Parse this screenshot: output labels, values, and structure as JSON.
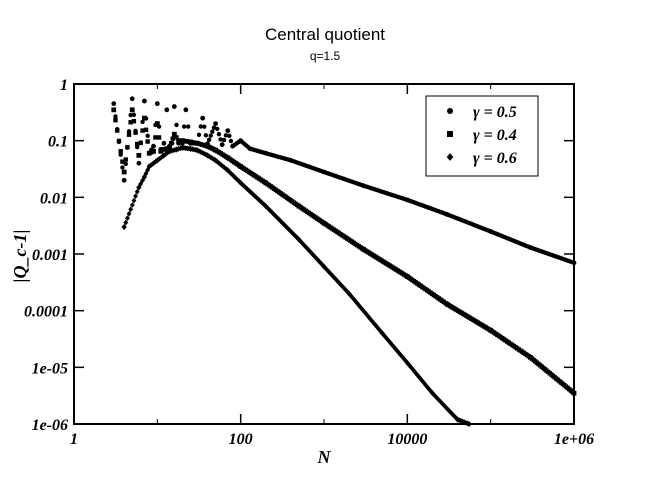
{
  "chart_data": {
    "type": "scatter",
    "title": "Central quotient",
    "subtitle": "q=1.5",
    "xlabel": "N",
    "ylabel": "|Q_c-1|",
    "xscale": "log",
    "yscale": "log",
    "xlim": [
      1,
      1000000
    ],
    "ylim": [
      1e-06,
      1
    ],
    "xticks": [
      {
        "value": 1,
        "label": "1"
      },
      {
        "value": 100,
        "label": "100"
      },
      {
        "value": 10000,
        "label": "10000"
      },
      {
        "value": 1000000,
        "label": "1e+06"
      }
    ],
    "yticks": [
      {
        "value": 1,
        "label": "1"
      },
      {
        "value": 0.1,
        "label": "0.1"
      },
      {
        "value": 0.01,
        "label": "0.01"
      },
      {
        "value": 0.001,
        "label": "0.001"
      },
      {
        "value": 0.0001,
        "label": "0.0001"
      },
      {
        "value": 1e-05,
        "label": "1e-05"
      },
      {
        "value": 1e-06,
        "label": "1e-06"
      }
    ],
    "legend_position": "top-right",
    "grid": false,
    "series": [
      {
        "name": "γ = 0.5",
        "marker": "circle",
        "points": [
          [
            3,
            0.45
          ],
          [
            4,
            0.02
          ],
          [
            5,
            0.55
          ],
          [
            6,
            0.04
          ],
          [
            7,
            0.5
          ],
          [
            8,
            0.06
          ],
          [
            9,
            0.08
          ],
          [
            10,
            0.45
          ],
          [
            11,
            0.07
          ],
          [
            12,
            0.09
          ],
          [
            13,
            0.35
          ],
          [
            14,
            0.08
          ],
          [
            15,
            0.09
          ],
          [
            16,
            0.4
          ],
          [
            18,
            0.09
          ],
          [
            20,
            0.09
          ],
          [
            22,
            0.35
          ],
          [
            25,
            0.09
          ],
          [
            30,
            0.09
          ],
          [
            35,
            0.25
          ],
          [
            40,
            0.088
          ],
          [
            50,
            0.2
          ],
          [
            60,
            0.085
          ],
          [
            70,
            0.15
          ],
          [
            80,
            0.08
          ],
          [
            100,
            0.1
          ],
          [
            130,
            0.072
          ],
          [
            200,
            0.06
          ],
          [
            400,
            0.045
          ],
          [
            1000,
            0.028
          ],
          [
            3000,
            0.016
          ],
          [
            10000,
            0.009
          ],
          [
            30000,
            0.005
          ],
          [
            100000,
            0.0025
          ],
          [
            300000,
            0.0013
          ],
          [
            1000000,
            0.0007
          ]
        ]
      },
      {
        "name": "γ = 0.4",
        "marker": "square",
        "points": [
          [
            3,
            0.35
          ],
          [
            4,
            0.028
          ],
          [
            5,
            0.35
          ],
          [
            6,
            0.055
          ],
          [
            7,
            0.25
          ],
          [
            8,
            0.06
          ],
          [
            9,
            0.065
          ],
          [
            10,
            0.2
          ],
          [
            11,
            0.065
          ],
          [
            12,
            0.07
          ],
          [
            14,
            0.075
          ],
          [
            16,
            0.13
          ],
          [
            18,
            0.1
          ],
          [
            20,
            0.1
          ],
          [
            25,
            0.095
          ],
          [
            30,
            0.09
          ],
          [
            40,
            0.08
          ],
          [
            50,
            0.068
          ],
          [
            70,
            0.05
          ],
          [
            100,
            0.035
          ],
          [
            200,
            0.018
          ],
          [
            500,
            0.007
          ],
          [
            1000,
            0.0035
          ],
          [
            3000,
            0.0012
          ],
          [
            10000,
            0.0004
          ],
          [
            30000,
            0.00013
          ],
          [
            100000,
            4.5e-05
          ],
          [
            300000,
            1.5e-05
          ],
          [
            1000000,
            3.5e-06
          ]
        ]
      },
      {
        "name": "γ = 0.6",
        "marker": "diamond",
        "points": [
          [
            4,
            0.003
          ],
          [
            6,
            0.015
          ],
          [
            7,
            0.023
          ],
          [
            8,
            0.035
          ],
          [
            10,
            0.045
          ],
          [
            12,
            0.055
          ],
          [
            14,
            0.065
          ],
          [
            17,
            0.07
          ],
          [
            20,
            0.075
          ],
          [
            25,
            0.072
          ],
          [
            30,
            0.068
          ],
          [
            40,
            0.055
          ],
          [
            50,
            0.045
          ],
          [
            70,
            0.03
          ],
          [
            100,
            0.018
          ],
          [
            200,
            0.007
          ],
          [
            500,
            0.0018
          ],
          [
            1000,
            0.0006
          ],
          [
            2000,
            0.0002
          ],
          [
            5000,
            4e-05
          ],
          [
            10000,
            1.2e-05
          ],
          [
            20000,
            3.5e-06
          ],
          [
            40000,
            1.2e-06
          ],
          [
            55000,
            1e-06
          ]
        ]
      }
    ]
  }
}
